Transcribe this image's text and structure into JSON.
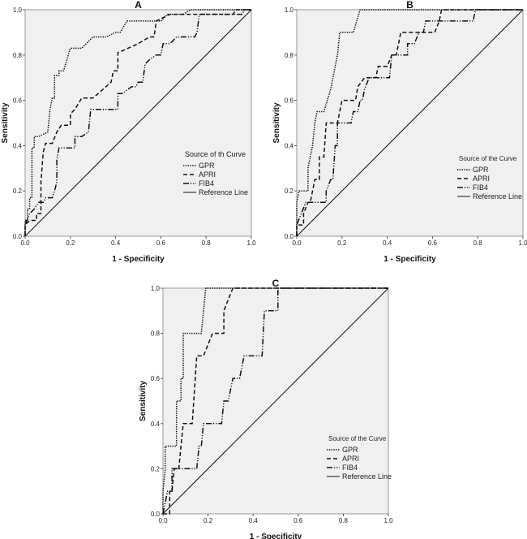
{
  "chart_data": [
    {
      "type": "line",
      "title": "A",
      "xlabel": "1 - Specificity",
      "ylabel": "Sensitivity",
      "xlim": [
        0,
        1
      ],
      "ylim": [
        0,
        1
      ],
      "xticks": [
        "0.0",
        "0.2",
        "0.4",
        "0.6",
        "0.8",
        "1.0"
      ],
      "yticks": [
        "0.0",
        "0.2",
        "0.4",
        "0.6",
        "0.8",
        "1.0"
      ],
      "legend_title": "Source of th Curve",
      "legend_position": "bottom-right",
      "series": [
        {
          "name": "GPR",
          "style": "dotted",
          "points": [
            [
              0,
              0
            ],
            [
              0,
              0.07
            ],
            [
              0.01,
              0.07
            ],
            [
              0.01,
              0.12
            ],
            [
              0.02,
              0.12
            ],
            [
              0.02,
              0.17
            ],
            [
              0.03,
              0.17
            ],
            [
              0.03,
              0.39
            ],
            [
              0.04,
              0.39
            ],
            [
              0.04,
              0.44
            ],
            [
              0.06,
              0.44
            ],
            [
              0.1,
              0.46
            ],
            [
              0.11,
              0.56
            ],
            [
              0.12,
              0.61
            ],
            [
              0.13,
              0.61
            ],
            [
              0.13,
              0.71
            ],
            [
              0.15,
              0.71
            ],
            [
              0.15,
              0.73
            ],
            [
              0.17,
              0.73
            ],
            [
              0.2,
              0.83
            ],
            [
              0.25,
              0.83
            ],
            [
              0.3,
              0.88
            ],
            [
              0.36,
              0.88
            ],
            [
              0.4,
              0.9
            ],
            [
              0.42,
              0.9
            ],
            [
              0.45,
              0.95
            ],
            [
              0.6,
              0.95
            ],
            [
              0.63,
              0.98
            ],
            [
              0.7,
              0.98
            ],
            [
              0.73,
              1
            ],
            [
              1,
              1
            ]
          ]
        },
        {
          "name": "APRI",
          "style": "dashed",
          "points": [
            [
              0,
              0
            ],
            [
              0,
              0.05
            ],
            [
              0.02,
              0.07
            ],
            [
              0.05,
              0.07
            ],
            [
              0.05,
              0.1
            ],
            [
              0.07,
              0.1
            ],
            [
              0.07,
              0.24
            ],
            [
              0.08,
              0.37
            ],
            [
              0.09,
              0.41
            ],
            [
              0.12,
              0.41
            ],
            [
              0.14,
              0.46
            ],
            [
              0.16,
              0.49
            ],
            [
              0.2,
              0.49
            ],
            [
              0.2,
              0.54
            ],
            [
              0.22,
              0.56
            ],
            [
              0.25,
              0.61
            ],
            [
              0.3,
              0.61
            ],
            [
              0.38,
              0.68
            ],
            [
              0.39,
              0.73
            ],
            [
              0.41,
              0.73
            ],
            [
              0.41,
              0.81
            ],
            [
              0.5,
              0.85
            ],
            [
              0.55,
              0.88
            ],
            [
              0.57,
              0.88
            ],
            [
              0.58,
              0.95
            ],
            [
              0.64,
              0.98
            ],
            [
              0.92,
              0.98
            ],
            [
              0.93,
              1
            ],
            [
              1,
              1
            ]
          ]
        },
        {
          "name": "FIB4",
          "style": "dash-dot-dot",
          "points": [
            [
              0,
              0
            ],
            [
              0,
              0.05
            ],
            [
              0.02,
              0.1
            ],
            [
              0.04,
              0.12
            ],
            [
              0.06,
              0.15
            ],
            [
              0.08,
              0.15
            ],
            [
              0.09,
              0.17
            ],
            [
              0.12,
              0.17
            ],
            [
              0.13,
              0.2
            ],
            [
              0.14,
              0.24
            ],
            [
              0.14,
              0.34
            ],
            [
              0.15,
              0.39
            ],
            [
              0.22,
              0.39
            ],
            [
              0.22,
              0.44
            ],
            [
              0.25,
              0.44
            ],
            [
              0.28,
              0.46
            ],
            [
              0.29,
              0.56
            ],
            [
              0.41,
              0.56
            ],
            [
              0.41,
              0.63
            ],
            [
              0.43,
              0.63
            ],
            [
              0.47,
              0.66
            ],
            [
              0.49,
              0.66
            ],
            [
              0.5,
              0.68
            ],
            [
              0.52,
              0.68
            ],
            [
              0.53,
              0.76
            ],
            [
              0.55,
              0.78
            ],
            [
              0.58,
              0.8
            ],
            [
              0.6,
              0.8
            ],
            [
              0.61,
              0.85
            ],
            [
              0.64,
              0.85
            ],
            [
              0.67,
              0.88
            ],
            [
              0.75,
              0.88
            ],
            [
              0.76,
              0.9
            ],
            [
              0.77,
              0.98
            ],
            [
              0.96,
              0.98
            ],
            [
              0.97,
              1
            ],
            [
              1,
              1
            ]
          ]
        },
        {
          "name": "Reference Line",
          "style": "solid",
          "points": [
            [
              0,
              0
            ],
            [
              1,
              1
            ]
          ]
        }
      ]
    },
    {
      "type": "line",
      "title": "B",
      "xlabel": "1 - Specificity",
      "ylabel": "Sensitivity",
      "xlim": [
        0,
        1
      ],
      "ylim": [
        0,
        1
      ],
      "xticks": [
        "0.0",
        "0.2",
        "0.4",
        "0.6",
        "0.8",
        "1.0"
      ],
      "yticks": [
        "0.0",
        "0.2",
        "0.4",
        "0.6",
        "0.8",
        "1.0"
      ],
      "legend_title": "Source of the Curve",
      "legend_position": "bottom-right",
      "series": [
        {
          "name": "GPR",
          "style": "dotted",
          "points": [
            [
              0,
              0
            ],
            [
              0,
              0.15
            ],
            [
              0.01,
              0.2
            ],
            [
              0.05,
              0.2
            ],
            [
              0.05,
              0.3
            ],
            [
              0.07,
              0.4
            ],
            [
              0.08,
              0.5
            ],
            [
              0.09,
              0.55
            ],
            [
              0.12,
              0.55
            ],
            [
              0.15,
              0.65
            ],
            [
              0.18,
              0.8
            ],
            [
              0.19,
              0.9
            ],
            [
              0.25,
              0.9
            ],
            [
              0.28,
              1
            ],
            [
              1,
              1
            ]
          ]
        },
        {
          "name": "APRI",
          "style": "dashed",
          "points": [
            [
              0,
              0
            ],
            [
              0,
              0.05
            ],
            [
              0.03,
              0.05
            ],
            [
              0.03,
              0.1
            ],
            [
              0.05,
              0.15
            ],
            [
              0.06,
              0.15
            ],
            [
              0.08,
              0.25
            ],
            [
              0.1,
              0.25
            ],
            [
              0.1,
              0.35
            ],
            [
              0.12,
              0.35
            ],
            [
              0.13,
              0.5
            ],
            [
              0.18,
              0.5
            ],
            [
              0.2,
              0.6
            ],
            [
              0.26,
              0.6
            ],
            [
              0.27,
              0.66
            ],
            [
              0.3,
              0.7
            ],
            [
              0.35,
              0.7
            ],
            [
              0.36,
              0.75
            ],
            [
              0.4,
              0.75
            ],
            [
              0.42,
              0.8
            ],
            [
              0.44,
              0.8
            ],
            [
              0.46,
              0.9
            ],
            [
              0.61,
              0.9
            ],
            [
              0.63,
              0.95
            ],
            [
              0.64,
              1
            ],
            [
              1,
              1
            ]
          ]
        },
        {
          "name": "FIB4",
          "style": "dash-dot-dot",
          "points": [
            [
              0,
              0
            ],
            [
              0,
              0.05
            ],
            [
              0.04,
              0.15
            ],
            [
              0.13,
              0.15
            ],
            [
              0.13,
              0.2
            ],
            [
              0.15,
              0.25
            ],
            [
              0.16,
              0.25
            ],
            [
              0.17,
              0.4
            ],
            [
              0.18,
              0.4
            ],
            [
              0.18,
              0.5
            ],
            [
              0.24,
              0.5
            ],
            [
              0.25,
              0.55
            ],
            [
              0.27,
              0.55
            ],
            [
              0.28,
              0.6
            ],
            [
              0.29,
              0.6
            ],
            [
              0.3,
              0.65
            ],
            [
              0.32,
              0.7
            ],
            [
              0.41,
              0.7
            ],
            [
              0.42,
              0.8
            ],
            [
              0.49,
              0.8
            ],
            [
              0.49,
              0.85
            ],
            [
              0.52,
              0.85
            ],
            [
              0.54,
              0.9
            ],
            [
              0.56,
              0.9
            ],
            [
              0.57,
              0.95
            ],
            [
              0.78,
              0.95
            ],
            [
              0.79,
              1
            ],
            [
              1,
              1
            ]
          ]
        },
        {
          "name": "Reference Line",
          "style": "solid",
          "points": [
            [
              0,
              0
            ],
            [
              1,
              1
            ]
          ]
        }
      ]
    },
    {
      "type": "line",
      "title": "C",
      "xlabel": "1 - Specificity",
      "ylabel": "Sensitivity",
      "xlim": [
        0,
        1
      ],
      "ylim": [
        0,
        1
      ],
      "xticks": [
        "0.0",
        "0.2",
        "0.4",
        "0.6",
        "0.8",
        "1.0"
      ],
      "yticks": [
        "0.0",
        "0.2",
        "0.4",
        "0.6",
        "0.8",
        "1.0"
      ],
      "legend_title": "Source of the Curve",
      "legend_position": "bottom-right",
      "series": [
        {
          "name": "GPR",
          "style": "dotted",
          "points": [
            [
              0,
              0
            ],
            [
              0,
              0.1
            ],
            [
              0.01,
              0.2
            ],
            [
              0.01,
              0.3
            ],
            [
              0.06,
              0.3
            ],
            [
              0.06,
              0.5
            ],
            [
              0.08,
              0.5
            ],
            [
              0.08,
              0.6
            ],
            [
              0.09,
              0.6
            ],
            [
              0.09,
              0.8
            ],
            [
              0.17,
              0.8
            ],
            [
              0.19,
              1
            ],
            [
              1,
              1
            ]
          ]
        },
        {
          "name": "APRI",
          "style": "dashed",
          "points": [
            [
              0,
              0
            ],
            [
              0.03,
              0
            ],
            [
              0.03,
              0.1
            ],
            [
              0.04,
              0.1
            ],
            [
              0.05,
              0.2
            ],
            [
              0.07,
              0.2
            ],
            [
              0.09,
              0.4
            ],
            [
              0.13,
              0.4
            ],
            [
              0.15,
              0.7
            ],
            [
              0.18,
              0.7
            ],
            [
              0.22,
              0.8
            ],
            [
              0.27,
              0.8
            ],
            [
              0.27,
              0.9
            ],
            [
              0.29,
              0.95
            ],
            [
              0.31,
              1
            ],
            [
              1,
              1
            ]
          ]
        },
        {
          "name": "FIB4",
          "style": "dash-dot-dot",
          "points": [
            [
              0,
              0
            ],
            [
              0.02,
              0.1
            ],
            [
              0.04,
              0.1
            ],
            [
              0.04,
              0.2
            ],
            [
              0.15,
              0.2
            ],
            [
              0.16,
              0.3
            ],
            [
              0.17,
              0.3
            ],
            [
              0.18,
              0.4
            ],
            [
              0.26,
              0.4
            ],
            [
              0.27,
              0.5
            ],
            [
              0.29,
              0.5
            ],
            [
              0.31,
              0.6
            ],
            [
              0.34,
              0.6
            ],
            [
              0.36,
              0.7
            ],
            [
              0.44,
              0.7
            ],
            [
              0.45,
              0.9
            ],
            [
              0.51,
              0.9
            ],
            [
              0.51,
              1
            ],
            [
              1,
              1
            ]
          ]
        },
        {
          "name": "Reference Line",
          "style": "solid",
          "points": [
            [
              0,
              0
            ],
            [
              1,
              1
            ]
          ]
        }
      ]
    }
  ]
}
